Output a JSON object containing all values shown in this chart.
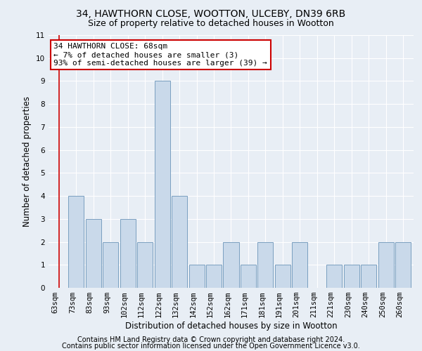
{
  "title1": "34, HAWTHORN CLOSE, WOOTTON, ULCEBY, DN39 6RB",
  "title2": "Size of property relative to detached houses in Wootton",
  "xlabel": "Distribution of detached houses by size in Wootton",
  "ylabel": "Number of detached properties",
  "footer1": "Contains HM Land Registry data © Crown copyright and database right 2024.",
  "footer2": "Contains public sector information licensed under the Open Government Licence v3.0.",
  "annotation_line1": "34 HAWTHORN CLOSE: 68sqm",
  "annotation_line2": "← 7% of detached houses are smaller (3)",
  "annotation_line3": "93% of semi-detached houses are larger (39) →",
  "categories": [
    "63sqm",
    "73sqm",
    "83sqm",
    "93sqm",
    "102sqm",
    "112sqm",
    "122sqm",
    "132sqm",
    "142sqm",
    "152sqm",
    "162sqm",
    "171sqm",
    "181sqm",
    "191sqm",
    "201sqm",
    "211sqm",
    "221sqm",
    "230sqm",
    "240sqm",
    "250sqm",
    "260sqm"
  ],
  "values": [
    0,
    4,
    3,
    2,
    3,
    2,
    9,
    4,
    1,
    1,
    2,
    1,
    2,
    1,
    2,
    0,
    1,
    1,
    1,
    2,
    2
  ],
  "bar_color": "#c9d9ea",
  "bar_edge_color": "#7a9fc0",
  "background_color": "#e8eef5",
  "plot_bg_color": "#e8eef5",
  "annotation_box_color": "#ffffff",
  "annotation_box_edge": "#cc0000",
  "red_line_color": "#cc0000",
  "grid_color": "#ffffff",
  "ylim": [
    0,
    11
  ],
  "yticks": [
    0,
    1,
    2,
    3,
    4,
    5,
    6,
    7,
    8,
    9,
    10,
    11
  ],
  "title1_fontsize": 10,
  "title2_fontsize": 9,
  "xlabel_fontsize": 8.5,
  "ylabel_fontsize": 8.5,
  "tick_fontsize": 7.5,
  "footer_fontsize": 7,
  "annotation_fontsize": 8
}
